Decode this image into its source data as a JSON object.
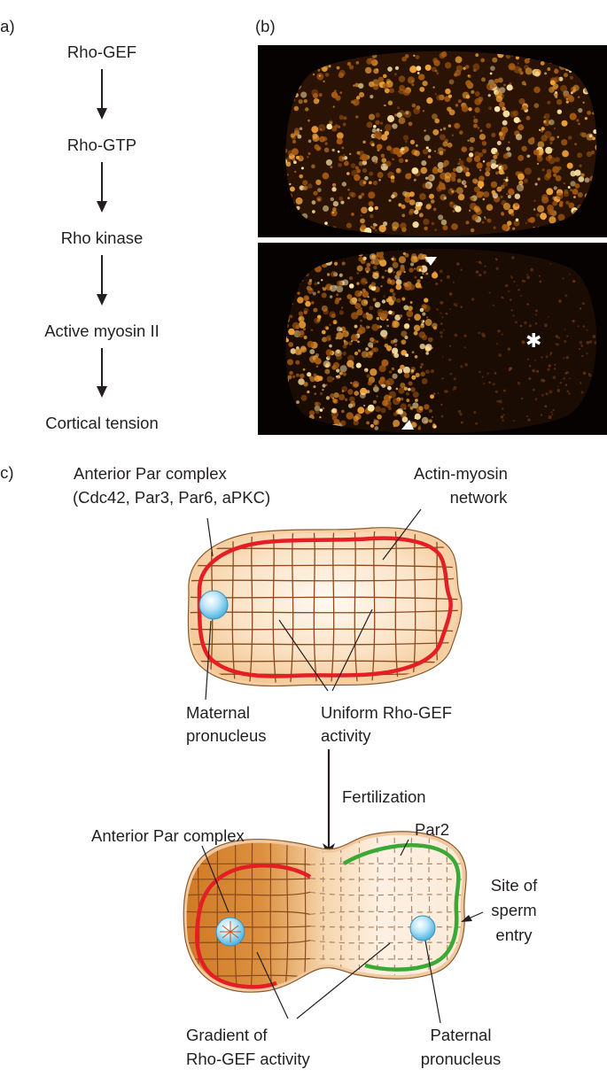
{
  "panel_a": {
    "label": "(a)",
    "steps": [
      "Rho-GEF",
      "Rho-GTP",
      "Rho kinase",
      "Active myosin II",
      "Cortical tension"
    ]
  },
  "panel_b": {
    "label": "(b)",
    "marker_symbol": "✱"
  },
  "panel_c": {
    "label": "(c)",
    "top": {
      "anterior_line1": "Anterior Par complex",
      "anterior_line2": "(Cdc42, Par3, Par6, aPKC)",
      "network_line1": "Actin-myosin",
      "network_line2": "network",
      "maternal_line1": "Maternal",
      "maternal_line2": "pronucleus",
      "uniform_line1": "Uniform Rho-GEF",
      "uniform_line2": "activity"
    },
    "arrow_label": "Fertilization",
    "bottom": {
      "anterior": "Anterior Par complex",
      "par2": "Par2",
      "site_line1": "Site of",
      "site_line2": "sperm",
      "site_line3": "entry",
      "gradient_line1": "Gradient of",
      "gradient_line2": "Rho-GEF activity",
      "paternal_line1": "Paternal",
      "paternal_line2": "pronucleus"
    }
  },
  "colors": {
    "par_anterior": "#e31e24",
    "par2": "#3aa935",
    "grid": "#8b4a1c",
    "pronucleus": "#8fd3f0",
    "cell_fill": "#f6d3ac",
    "gradient_dark": "#d4832b"
  }
}
